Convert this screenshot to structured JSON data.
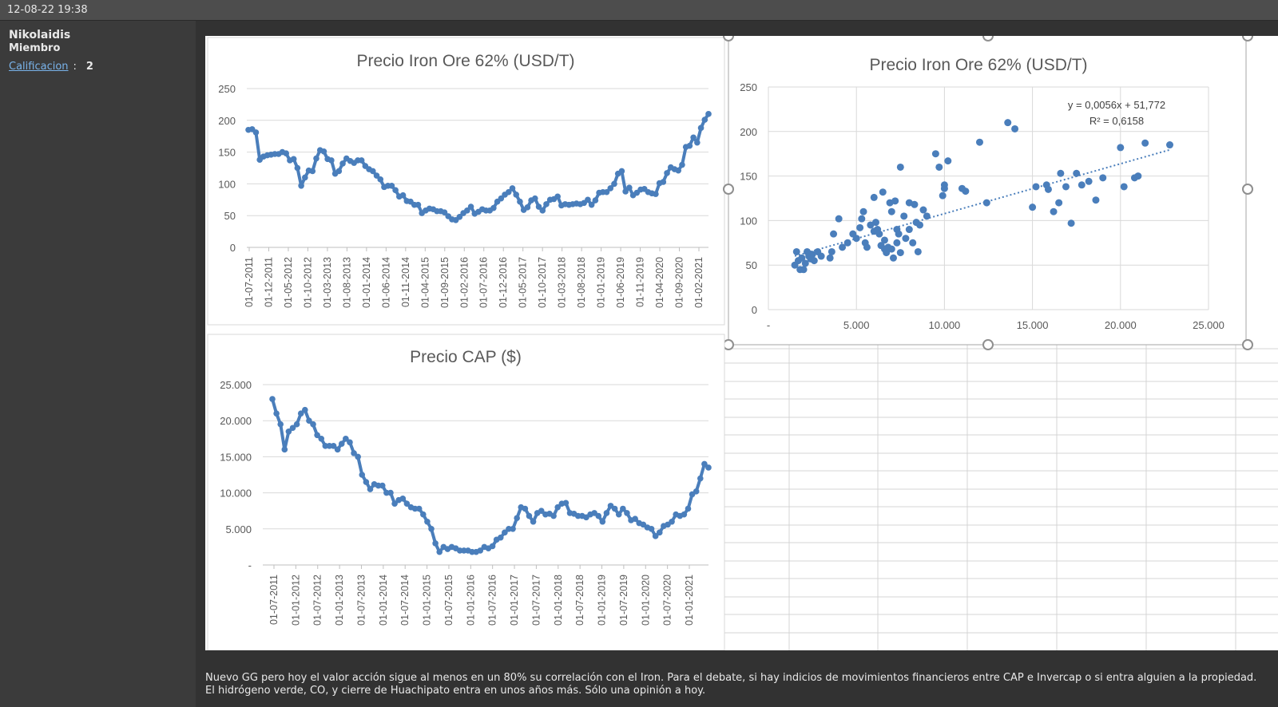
{
  "post": {
    "datetime": "12-08-22 19:38",
    "author": "Nikolaidis",
    "role": "Miembro",
    "rating_label": "Calificacion",
    "rating_sep": ":",
    "rating_value": "2",
    "text": "Nuevo GG pero hoy el valor acción sigue al menos en un 80% su correlación con el Iron. Para el debate, si hay indicios de movimientos financieros entre CAP e Invercap o si entra alguien a la propiedad. El hidrógeno verde, CO, y cierre de Huachipato entra en unos años más. Sólo una opinión a hoy."
  },
  "colors": {
    "series": "#4a7ebb",
    "grid": "#d9d9d9",
    "axis_text": "#595959"
  },
  "chart_data": [
    {
      "type": "line",
      "title": "Precio Iron Ore 62% (USD/T)",
      "ylim": [
        0,
        250
      ],
      "yticks": [
        "0",
        "50",
        "100",
        "150",
        "200",
        "250"
      ],
      "xtick_labels": [
        "01-07-2011",
        "01-12-2011",
        "01-05-2012",
        "01-10-2012",
        "01-03-2013",
        "01-08-2013",
        "01-01-2014",
        "01-06-2014",
        "01-11-2014",
        "01-04-2015",
        "01-09-2015",
        "01-02-2016",
        "01-07-2016",
        "01-12-2016",
        "01-05-2017",
        "01-10-2017",
        "01-03-2018",
        "01-08-2018",
        "01-01-2019",
        "01-06-2019",
        "01-11-2019",
        "01-04-2020",
        "01-09-2020",
        "01-02-2021"
      ],
      "grid": true,
      "values": [
        185,
        186,
        181,
        138,
        143,
        145,
        146,
        147,
        147,
        150,
        148,
        137,
        139,
        125,
        97,
        110,
        121,
        120,
        140,
        153,
        151,
        139,
        137,
        116,
        120,
        132,
        140,
        136,
        133,
        137,
        137,
        128,
        123,
        120,
        113,
        107,
        95,
        97,
        97,
        90,
        80,
        82,
        73,
        72,
        67,
        67,
        54,
        58,
        61,
        60,
        57,
        57,
        55,
        49,
        44,
        43,
        48,
        54,
        58,
        64,
        53,
        56,
        60,
        58,
        58,
        62,
        72,
        77,
        83,
        87,
        93,
        83,
        72,
        59,
        63,
        74,
        77,
        64,
        58,
        68,
        75,
        76,
        80,
        66,
        68,
        67,
        68,
        69,
        68,
        70,
        75,
        67,
        74,
        86,
        87,
        87,
        93,
        100,
        116,
        120,
        88,
        94,
        82,
        86,
        91,
        92,
        87,
        85,
        84,
        101,
        103,
        117,
        126,
        123,
        121,
        130,
        158,
        160,
        173,
        165,
        188,
        201,
        210
      ]
    },
    {
      "type": "scatter",
      "title": "Precio Iron Ore 62% (USD/T)",
      "xlim": [
        0,
        25000
      ],
      "ylim": [
        0,
        250
      ],
      "xticks": [
        "-",
        "5.000",
        "10.000",
        "15.000",
        "20.000",
        "25.000"
      ],
      "yticks": [
        "0",
        "50",
        "100",
        "150",
        "200",
        "250"
      ],
      "grid": true,
      "trendline": {
        "slope": 0.0056,
        "intercept": 51.772,
        "style": "dotted"
      },
      "annotations": [
        "y = 0,0056x + 51,772",
        "R² = 0,6158"
      ],
      "points": [
        [
          1500,
          50
        ],
        [
          1600,
          65
        ],
        [
          1700,
          55
        ],
        [
          1800,
          45
        ],
        [
          1900,
          58
        ],
        [
          2000,
          45
        ],
        [
          2100,
          52
        ],
        [
          2200,
          65
        ],
        [
          2300,
          60
        ],
        [
          2400,
          57
        ],
        [
          2500,
          62
        ],
        [
          2600,
          55
        ],
        [
          2800,
          65
        ],
        [
          3000,
          60
        ],
        [
          3500,
          58
        ],
        [
          3600,
          65
        ],
        [
          3700,
          85
        ],
        [
          4000,
          102
        ],
        [
          4200,
          70
        ],
        [
          4500,
          75
        ],
        [
          4800,
          85
        ],
        [
          5000,
          80
        ],
        [
          5200,
          92
        ],
        [
          5300,
          102
        ],
        [
          5400,
          110
        ],
        [
          5500,
          75
        ],
        [
          5600,
          70
        ],
        [
          5800,
          95
        ],
        [
          6000,
          88
        ],
        [
          6000,
          126
        ],
        [
          6100,
          98
        ],
        [
          6200,
          90
        ],
        [
          6300,
          85
        ],
        [
          6400,
          72
        ],
        [
          6500,
          132
        ],
        [
          6600,
          78
        ],
        [
          6600,
          68
        ],
        [
          6700,
          64
        ],
        [
          6800,
          70
        ],
        [
          6900,
          120
        ],
        [
          7000,
          110
        ],
        [
          7000,
          68
        ],
        [
          7100,
          58
        ],
        [
          7200,
          122
        ],
        [
          7300,
          90
        ],
        [
          7300,
          75
        ],
        [
          7400,
          85
        ],
        [
          7500,
          160
        ],
        [
          7500,
          64
        ],
        [
          7700,
          105
        ],
        [
          7800,
          80
        ],
        [
          8000,
          120
        ],
        [
          8000,
          90
        ],
        [
          8200,
          75
        ],
        [
          8300,
          118
        ],
        [
          8400,
          98
        ],
        [
          8500,
          65
        ],
        [
          8600,
          95
        ],
        [
          8800,
          112
        ],
        [
          9000,
          105
        ],
        [
          9500,
          175
        ],
        [
          9700,
          160
        ],
        [
          9900,
          128
        ],
        [
          10000,
          140
        ],
        [
          10000,
          136
        ],
        [
          10200,
          167
        ],
        [
          11000,
          136
        ],
        [
          11200,
          133
        ],
        [
          12000,
          188
        ],
        [
          12400,
          120
        ],
        [
          13600,
          210
        ],
        [
          14000,
          203
        ],
        [
          15000,
          115
        ],
        [
          15200,
          138
        ],
        [
          15800,
          140
        ],
        [
          15900,
          135
        ],
        [
          16200,
          110
        ],
        [
          16500,
          120
        ],
        [
          16600,
          153
        ],
        [
          16900,
          138
        ],
        [
          17200,
          97
        ],
        [
          17500,
          153
        ],
        [
          17800,
          140
        ],
        [
          18200,
          144
        ],
        [
          18600,
          123
        ],
        [
          19000,
          148
        ],
        [
          20000,
          182
        ],
        [
          20200,
          138
        ],
        [
          20800,
          148
        ],
        [
          21000,
          150
        ],
        [
          21400,
          187
        ],
        [
          22800,
          185
        ]
      ]
    },
    {
      "type": "line",
      "title": "Precio CAP ($)",
      "ylim": [
        0,
        25000
      ],
      "yticks": [
        "-",
        "5.000",
        "10.000",
        "15.000",
        "20.000",
        "25.000"
      ],
      "xtick_labels": [
        "01-07-2011",
        "01-01-2012",
        "01-07-2012",
        "01-01-2013",
        "01-07-2013",
        "01-01-2014",
        "01-07-2014",
        "01-01-2015",
        "01-07-2015",
        "01-01-2016",
        "01-07-2016",
        "01-01-2017",
        "01-07-2017",
        "01-01-2018",
        "01-07-2018",
        "01-01-2019",
        "01-07-2019",
        "01-01-2020",
        "01-07-2020",
        "01-01-2021"
      ],
      "grid": true,
      "values": [
        23000,
        21000,
        19500,
        16000,
        18500,
        19000,
        19500,
        21000,
        21500,
        20000,
        19500,
        18000,
        17500,
        16500,
        16500,
        16500,
        16000,
        16800,
        17500,
        17000,
        15500,
        15000,
        12500,
        11500,
        10500,
        11200,
        11000,
        11000,
        10000,
        10000,
        8500,
        9000,
        9200,
        8500,
        8000,
        7800,
        7800,
        7000,
        6000,
        5000,
        3000,
        1800,
        2500,
        2200,
        2500,
        2300,
        2000,
        2000,
        2000,
        1800,
        1800,
        2000,
        2500,
        2300,
        2600,
        3500,
        3800,
        4500,
        5000,
        5000,
        6500,
        8000,
        7800,
        6800,
        6000,
        7200,
        7500,
        7000,
        7100,
        6800,
        8000,
        8500,
        8600,
        7200,
        7100,
        6800,
        6800,
        6600,
        7000,
        7200,
        6800,
        6000,
        7200,
        8200,
        7800,
        7000,
        7800,
        7200,
        6200,
        6400,
        5800,
        5600,
        5200,
        5000,
        4000,
        4500,
        5400,
        5600,
        6000,
        7000,
        6800,
        7000,
        7800,
        9800,
        10200,
        12000,
        14000,
        13500
      ]
    }
  ]
}
